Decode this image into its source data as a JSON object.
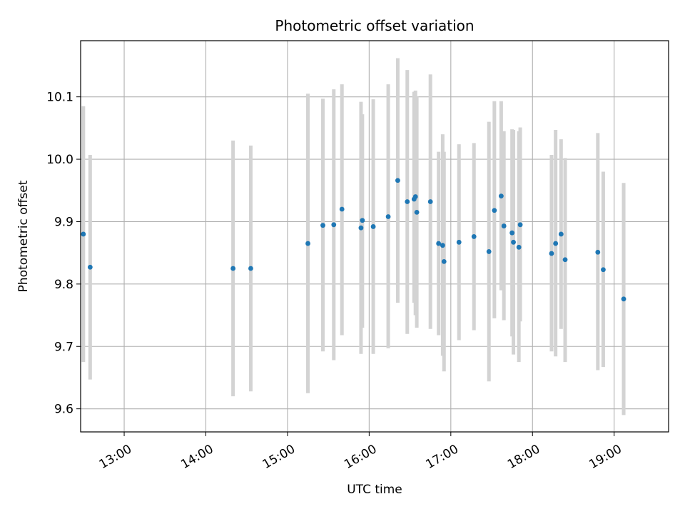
{
  "chart_data": {
    "type": "scatter",
    "title": "Photometric offset variation",
    "xlabel": "UTC time",
    "ylabel": "Photometric offset",
    "x_ticks": [
      "13:00",
      "14:00",
      "15:00",
      "16:00",
      "17:00",
      "18:00",
      "19:00"
    ],
    "y_ticks": [
      "9.6",
      "9.7",
      "9.8",
      "9.9",
      "10.0",
      "10.1"
    ],
    "xlim": [
      "12:28",
      "19:40"
    ],
    "ylim": [
      9.563,
      10.19
    ],
    "grid": true,
    "colors": {
      "point": "#1f77b4",
      "errorbar": "#d3d3d3",
      "grid": "#b0b0b0"
    },
    "points": [
      {
        "t": "12:30",
        "y": 9.88,
        "lo": 9.675,
        "hi": 10.085
      },
      {
        "t": "12:35",
        "y": 9.827,
        "lo": 9.647,
        "hi": 10.007
      },
      {
        "t": "14:20",
        "y": 9.825,
        "lo": 9.62,
        "hi": 10.03
      },
      {
        "t": "14:33",
        "y": 9.825,
        "lo": 9.628,
        "hi": 10.022
      },
      {
        "t": "15:15",
        "y": 9.865,
        "lo": 9.625,
        "hi": 10.105
      },
      {
        "t": "15:26",
        "y": 9.894,
        "lo": 9.692,
        "hi": 10.097
      },
      {
        "t": "15:34",
        "y": 9.895,
        "lo": 9.678,
        "hi": 10.112
      },
      {
        "t": "15:40",
        "y": 9.92,
        "lo": 9.718,
        "hi": 10.12
      },
      {
        "t": "15:54",
        "y": 9.89,
        "lo": 9.688,
        "hi": 10.092
      },
      {
        "t": "15:55",
        "y": 9.902,
        "lo": 9.73,
        "hi": 10.072
      },
      {
        "t": "16:03",
        "y": 9.892,
        "lo": 9.688,
        "hi": 10.096
      },
      {
        "t": "16:14",
        "y": 9.908,
        "lo": 9.697,
        "hi": 10.12
      },
      {
        "t": "16:21",
        "y": 9.966,
        "lo": 9.77,
        "hi": 10.162
      },
      {
        "t": "16:28",
        "y": 9.932,
        "lo": 9.72,
        "hi": 10.143
      },
      {
        "t": "16:33",
        "y": 9.936,
        "lo": 9.77,
        "hi": 10.108
      },
      {
        "t": "16:34",
        "y": 9.94,
        "lo": 9.75,
        "hi": 10.11
      },
      {
        "t": "16:35",
        "y": 9.915,
        "lo": 9.73,
        "hi": 10.1
      },
      {
        "t": "16:45",
        "y": 9.932,
        "lo": 9.728,
        "hi": 10.136
      },
      {
        "t": "16:51",
        "y": 9.865,
        "lo": 9.718,
        "hi": 10.012
      },
      {
        "t": "16:54",
        "y": 9.862,
        "lo": 9.685,
        "hi": 10.04
      },
      {
        "t": "16:55",
        "y": 9.836,
        "lo": 9.66,
        "hi": 10.012
      },
      {
        "t": "17:06",
        "y": 9.867,
        "lo": 9.71,
        "hi": 10.024
      },
      {
        "t": "17:17",
        "y": 9.876,
        "lo": 9.726,
        "hi": 10.026
      },
      {
        "t": "17:28",
        "y": 9.852,
        "lo": 9.644,
        "hi": 10.06
      },
      {
        "t": "17:32",
        "y": 9.918,
        "lo": 9.745,
        "hi": 10.093
      },
      {
        "t": "17:37",
        "y": 9.941,
        "lo": 9.79,
        "hi": 10.093
      },
      {
        "t": "17:39",
        "y": 9.893,
        "lo": 9.742,
        "hi": 10.045
      },
      {
        "t": "17:45",
        "y": 9.882,
        "lo": 9.716,
        "hi": 10.048
      },
      {
        "t": "17:46",
        "y": 9.867,
        "lo": 9.687,
        "hi": 10.047
      },
      {
        "t": "17:50",
        "y": 9.859,
        "lo": 9.675,
        "hi": 10.045
      },
      {
        "t": "17:51",
        "y": 9.895,
        "lo": 9.74,
        "hi": 10.051
      },
      {
        "t": "18:14",
        "y": 9.849,
        "lo": 9.692,
        "hi": 10.007
      },
      {
        "t": "18:17",
        "y": 9.865,
        "lo": 9.684,
        "hi": 10.047
      },
      {
        "t": "18:21",
        "y": 9.88,
        "lo": 9.728,
        "hi": 10.032
      },
      {
        "t": "18:24",
        "y": 9.839,
        "lo": 9.675,
        "hi": 10.002
      },
      {
        "t": "18:48",
        "y": 9.851,
        "lo": 9.662,
        "hi": 10.042
      },
      {
        "t": "18:52",
        "y": 9.823,
        "lo": 9.667,
        "hi": 9.98
      },
      {
        "t": "19:07",
        "y": 9.776,
        "lo": 9.59,
        "hi": 9.962
      }
    ]
  }
}
